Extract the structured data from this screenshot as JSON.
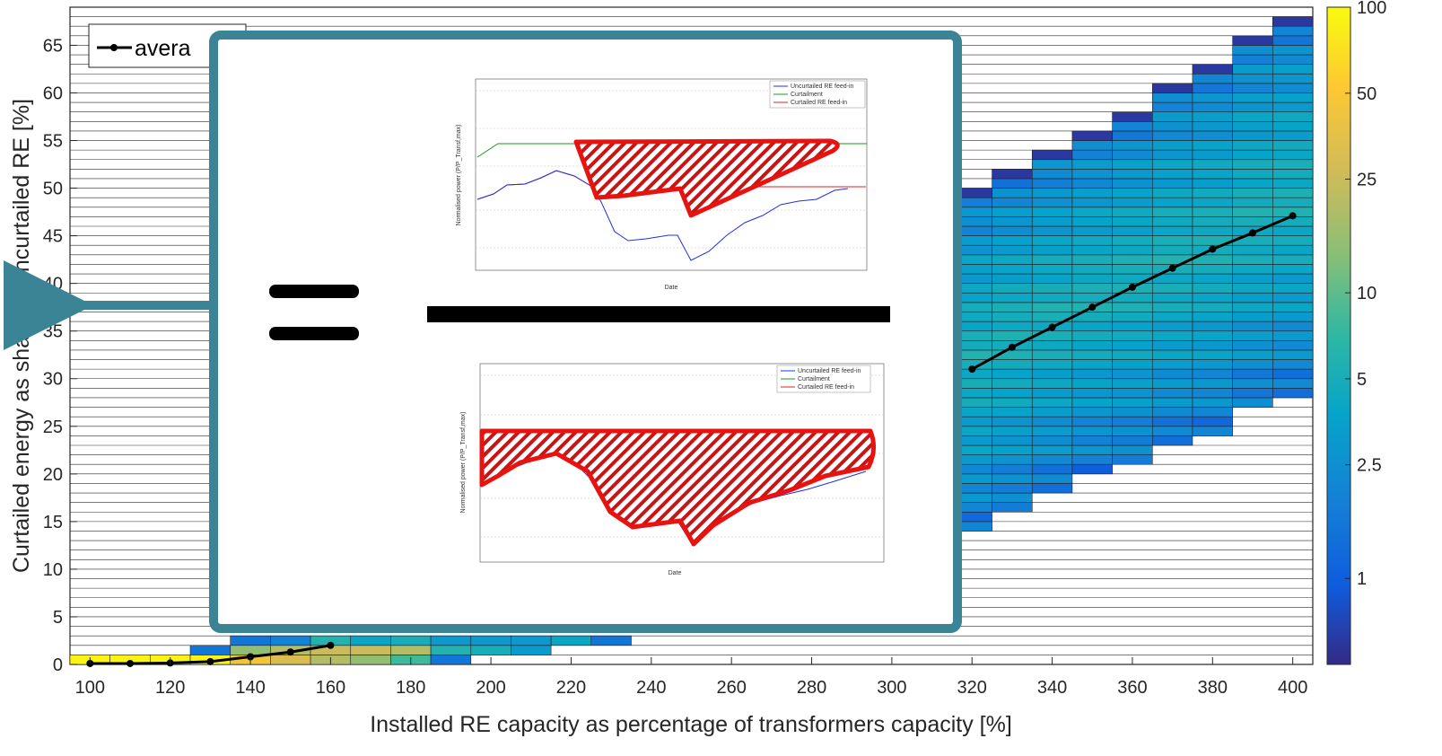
{
  "chart_data": {
    "type": "heatmap",
    "xlabel": "Installed RE capacity as percentage of transformers capacity [%]",
    "ylabel": "Curtailed energy as share of uncurtailed RE [%]",
    "xlim": [
      95,
      405
    ],
    "ylim": [
      0,
      69
    ],
    "x_ticks": [
      "100",
      "120",
      "140",
      "160",
      "180",
      "200",
      "220",
      "240",
      "260",
      "280",
      "300",
      "320",
      "340",
      "360",
      "380",
      "400"
    ],
    "y_ticks": [
      "0",
      "5",
      "10",
      "15",
      "20",
      "25",
      "30",
      "35",
      "40",
      "45",
      "50",
      "55",
      "60",
      "65"
    ],
    "grid": "on",
    "colorbar": {
      "scale": "log",
      "ticks": [
        "100",
        "50",
        "25",
        "10",
        "5",
        "2.5",
        "1"
      ],
      "colormap": "parula"
    },
    "legend": {
      "position": "top-left",
      "entries": [
        "average"
      ],
      "visible_text": "avera"
    },
    "series": [
      {
        "name": "average",
        "x": [
          100,
          110,
          120,
          130,
          140,
          150,
          160,
          320,
          330,
          340,
          350,
          360,
          370,
          380,
          390,
          400
        ],
        "y": [
          0.1,
          0.1,
          0.15,
          0.3,
          0.8,
          1.3,
          2.0,
          31.0,
          33.3,
          35.4,
          37.5,
          39.6,
          41.6,
          43.6,
          45.3,
          47.1
        ]
      }
    ],
    "heatmap_cells": [
      {
        "x": 100,
        "y": 0,
        "pct": 90
      },
      {
        "x": 110,
        "y": 0,
        "pct": 90
      },
      {
        "x": 120,
        "y": 0,
        "pct": 90
      },
      {
        "x": 130,
        "y": 0,
        "pct": 90
      },
      {
        "x": 130,
        "y": 1,
        "pct": 1.5
      },
      {
        "x": 140,
        "y": 0,
        "pct": 45
      },
      {
        "x": 140,
        "y": 1,
        "pct": 15
      },
      {
        "x": 140,
        "y": 2,
        "pct": 1.5
      },
      {
        "x": 150,
        "y": 0,
        "pct": 30
      },
      {
        "x": 150,
        "y": 1,
        "pct": 20
      },
      {
        "x": 150,
        "y": 2,
        "pct": 2
      },
      {
        "x": 160,
        "y": 0,
        "pct": 20
      },
      {
        "x": 160,
        "y": 1,
        "pct": 25
      },
      {
        "x": 160,
        "y": 2,
        "pct": 6
      },
      {
        "x": 170,
        "y": 0,
        "pct": 15
      },
      {
        "x": 170,
        "y": 1,
        "pct": 25
      },
      {
        "x": 170,
        "y": 2,
        "pct": 4
      },
      {
        "x": 180,
        "y": 0,
        "pct": 8
      },
      {
        "x": 180,
        "y": 1,
        "pct": 20
      },
      {
        "x": 180,
        "y": 2,
        "pct": 5
      },
      {
        "x": 190,
        "y": 0,
        "pct": 1.5
      },
      {
        "x": 190,
        "y": 1,
        "pct": 6
      },
      {
        "x": 190,
        "y": 2,
        "pct": 3
      },
      {
        "x": 200,
        "y": 1,
        "pct": 5
      },
      {
        "x": 200,
        "y": 2,
        "pct": 3
      },
      {
        "x": 210,
        "y": 1,
        "pct": 3
      },
      {
        "x": 210,
        "y": 2,
        "pct": 3
      },
      {
        "x": 220,
        "y": 2,
        "pct": 4
      },
      {
        "x": 230,
        "y": 2,
        "pct": 1.5
      }
    ]
  },
  "overlay": {
    "equals_sign": "=",
    "inset_top": {
      "legend": [
        "Uncurtailed RE feed-in",
        "Curtailment",
        "Curtailed RE feed-in"
      ],
      "ylabel": "Normalised power (P/P_Transf,max)",
      "xlabel": "Date"
    },
    "inset_bottom": {
      "legend": [
        "Uncurtailed RE feed-in",
        "Curtailment",
        "Curtailed RE feed-in"
      ],
      "ylabel": "Normalised power (P/P_Transf,max)",
      "xlabel": "Date"
    },
    "colors": {
      "frame": "#3b8496",
      "hatch": "#e8120f",
      "uncurtailed": "#2030e0",
      "curtailment": "#1a9a1a",
      "curtailed": "#e02020"
    }
  }
}
